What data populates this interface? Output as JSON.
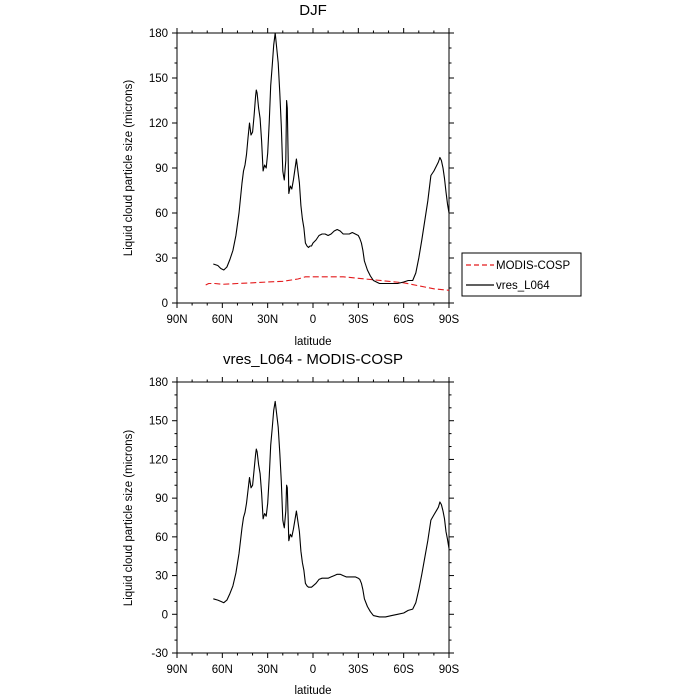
{
  "chart_data": [
    {
      "type": "line",
      "title": "DJF",
      "xlabel": "latitude",
      "ylabel": "Liquid cloud particle size (microns)",
      "xlim": [
        90,
        -90
      ],
      "ylim": [
        0,
        180
      ],
      "xticks": [
        90,
        60,
        30,
        0,
        -30,
        -60,
        -90
      ],
      "xtick_labels": [
        "90N",
        "60N",
        "30N",
        "0",
        "30S",
        "60S",
        "90S"
      ],
      "yticks": [
        0,
        30,
        60,
        90,
        120,
        150,
        180
      ],
      "ytick_labels": [
        "0",
        "30",
        "60",
        "90",
        "120",
        "150",
        "180"
      ],
      "legend": {
        "placement": "right",
        "entries": [
          "MODIS-COSP",
          "vres_L064"
        ]
      },
      "series": [
        {
          "name": "MODIS-COSP",
          "color": "#e41a1c",
          "dash": "dashed",
          "x": [
            71,
            69,
            65,
            60,
            50,
            40,
            30,
            20,
            10,
            5,
            0,
            -10,
            -20,
            -30,
            -40,
            -50,
            -60,
            -70,
            -80,
            -90
          ],
          "y": [
            12,
            13,
            13,
            12.5,
            13,
            13.5,
            14,
            14.5,
            16,
            17.5,
            17.5,
            17.5,
            17.5,
            16.5,
            15.5,
            14.5,
            13.5,
            11.5,
            9.5,
            8.5
          ]
        },
        {
          "name": "vres_L064",
          "color": "#000000",
          "dash": "solid",
          "x": [
            66,
            63,
            61,
            59,
            57,
            55,
            53,
            51,
            49,
            47,
            46,
            45,
            44,
            43,
            42,
            41,
            40,
            39,
            38,
            37.5,
            37,
            36,
            35,
            34,
            33,
            32,
            31,
            30,
            29,
            28,
            27,
            26,
            25,
            24,
            23,
            22,
            21,
            20,
            19.5,
            19,
            18,
            17.5,
            17,
            16,
            15,
            14,
            13,
            12,
            11,
            10,
            9,
            8,
            7,
            6,
            5,
            4,
            3,
            2,
            1,
            0,
            -2,
            -4,
            -6,
            -8,
            -10,
            -12,
            -14,
            -16,
            -18,
            -20,
            -22,
            -24,
            -26,
            -28,
            -30,
            -31,
            -32,
            -33,
            -34,
            -36,
            -38,
            -40,
            -44,
            -48,
            -52,
            -56,
            -60,
            -63,
            -66,
            -68,
            -70,
            -72,
            -74,
            -76,
            -78,
            -80,
            -82,
            -83,
            -84,
            -85,
            -86,
            -87,
            -88,
            -89,
            -90
          ],
          "y": [
            26,
            25,
            23,
            22,
            24,
            29,
            35,
            45,
            60,
            80,
            88,
            92,
            99,
            110,
            120,
            112,
            114,
            125,
            138,
            142,
            140,
            130,
            123,
            108,
            88,
            92,
            90,
            100,
            120,
            145,
            158,
            172,
            180,
            170,
            160,
            140,
            118,
            88,
            85,
            82,
            95,
            135,
            130,
            73,
            78,
            76,
            82,
            89,
            96,
            88,
            80,
            65,
            56,
            50,
            40,
            38,
            37,
            38,
            38,
            40,
            42,
            45,
            46,
            46,
            45,
            46,
            48,
            49,
            48,
            46,
            46,
            46,
            47,
            46,
            45,
            43,
            40,
            35,
            28,
            22,
            18,
            15,
            13,
            13,
            13,
            13,
            14,
            15,
            15,
            20,
            30,
            42,
            55,
            68,
            85,
            88,
            92,
            94,
            97,
            95,
            90,
            83,
            74,
            66,
            60
          ]
        }
      ]
    },
    {
      "type": "line",
      "title": "vres_L064 - MODIS-COSP",
      "xlabel": "latitude",
      "ylabel": "Liquid cloud particle size (microns)",
      "xlim": [
        90,
        -90
      ],
      "ylim": [
        -30,
        180
      ],
      "xticks": [
        90,
        60,
        30,
        0,
        -30,
        -60,
        -90
      ],
      "xtick_labels": [
        "90N",
        "60N",
        "30N",
        "0",
        "30S",
        "60S",
        "90S"
      ],
      "yticks": [
        -30,
        0,
        30,
        60,
        90,
        120,
        150,
        180
      ],
      "ytick_labels": [
        "-30",
        "0",
        "30",
        "60",
        "90",
        "120",
        "150",
        "180"
      ],
      "series": [
        {
          "name": "vres_L064 - MODIS-COSP",
          "color": "#000000",
          "dash": "solid",
          "x": [
            66,
            63,
            61,
            59,
            57,
            55,
            53,
            51,
            49,
            47,
            46,
            45,
            44,
            43,
            42,
            41,
            40,
            39,
            38,
            37.5,
            37,
            36,
            35,
            34,
            33,
            32,
            31,
            30,
            29,
            28,
            27,
            26,
            25,
            24,
            23,
            22,
            21,
            20,
            19.5,
            19,
            18,
            17.5,
            17,
            16,
            15,
            14,
            13,
            12,
            11,
            10,
            9,
            8,
            7,
            6,
            5,
            4,
            3,
            2,
            1,
            0,
            -2,
            -4,
            -6,
            -8,
            -10,
            -12,
            -14,
            -16,
            -18,
            -20,
            -22,
            -24,
            -26,
            -28,
            -30,
            -31,
            -32,
            -33,
            -34,
            -36,
            -38,
            -40,
            -44,
            -48,
            -52,
            -56,
            -60,
            -63,
            -66,
            -68,
            -70,
            -72,
            -74,
            -76,
            -78,
            -80,
            -82,
            -83,
            -84,
            -85,
            -86,
            -87,
            -88,
            -89,
            -90
          ],
          "y": [
            12,
            11,
            10,
            9,
            11,
            16,
            22,
            32,
            47,
            67,
            75,
            79,
            86,
            96,
            106,
            98,
            100,
            112,
            124,
            128,
            126,
            116,
            109,
            94,
            74,
            78,
            76,
            86,
            106,
            131,
            144,
            158,
            165,
            155,
            145,
            125,
            103,
            73,
            70,
            67,
            80,
            100,
            98,
            57,
            62,
            60,
            66,
            73,
            80,
            72,
            64,
            49,
            40,
            34,
            24,
            22,
            21,
            21,
            21,
            22,
            24,
            27,
            28,
            28,
            28,
            29,
            30,
            31,
            31,
            30,
            29,
            29,
            29,
            29,
            28,
            27,
            24,
            19,
            12,
            6,
            2,
            -1,
            -2,
            -2,
            -1,
            0,
            1,
            3,
            4,
            9,
            19,
            31,
            44,
            57,
            73,
            77,
            81,
            83,
            87,
            85,
            80,
            74,
            64,
            58,
            51
          ]
        }
      ]
    }
  ]
}
